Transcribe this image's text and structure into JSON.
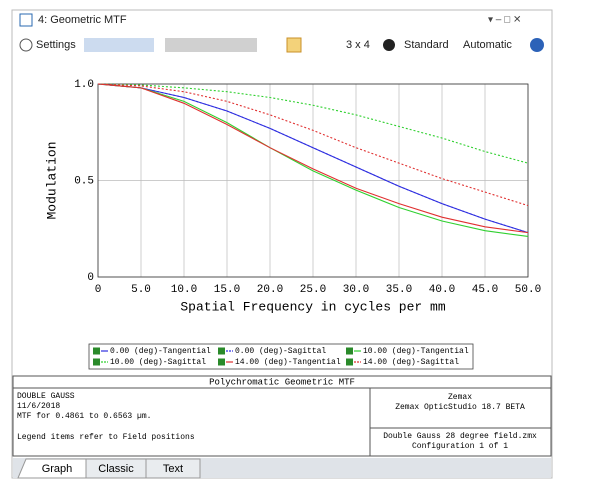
{
  "window": {
    "title": "4: Geometric MTF"
  },
  "toolbar": {
    "settings": "Settings",
    "layout": "3 x 4",
    "standard": "Standard",
    "automatic": "Automatic"
  },
  "chart_data": {
    "type": "line",
    "xlabel": "Spatial Frequency in cycles per mm",
    "ylabel": "Modulation",
    "x": [
      0,
      5,
      10,
      15,
      20,
      25,
      30,
      35,
      40,
      45,
      50
    ],
    "series": [
      {
        "name": "0.00 (deg)-Tangential",
        "color": "#3030e0",
        "style": "solid",
        "values": [
          1.0,
          0.98,
          0.93,
          0.86,
          0.77,
          0.67,
          0.57,
          0.47,
          0.38,
          0.3,
          0.23
        ]
      },
      {
        "name": "0.00 (deg)-Sagittal",
        "color": "#3030e0",
        "style": "dashed",
        "values": [
          1.0,
          0.98,
          0.93,
          0.86,
          0.77,
          0.67,
          0.57,
          0.47,
          0.38,
          0.3,
          0.23
        ]
      },
      {
        "name": "10.00 (deg)-Tangential",
        "color": "#30d030",
        "style": "solid",
        "values": [
          1.0,
          0.98,
          0.91,
          0.8,
          0.67,
          0.55,
          0.45,
          0.36,
          0.29,
          0.24,
          0.21
        ]
      },
      {
        "name": "10.00 (deg)-Sagittal",
        "color": "#30d030",
        "style": "dashed",
        "values": [
          1.0,
          0.995,
          0.98,
          0.96,
          0.93,
          0.89,
          0.84,
          0.78,
          0.72,
          0.65,
          0.59
        ]
      },
      {
        "name": "14.00 (deg)-Tangential",
        "color": "#e03030",
        "style": "solid",
        "values": [
          1.0,
          0.98,
          0.9,
          0.79,
          0.67,
          0.56,
          0.46,
          0.38,
          0.31,
          0.26,
          0.23
        ]
      },
      {
        "name": "14.00 (deg)-Sagittal",
        "color": "#e03030",
        "style": "dashed",
        "values": [
          1.0,
          0.99,
          0.96,
          0.91,
          0.84,
          0.76,
          0.67,
          0.59,
          0.51,
          0.44,
          0.37
        ]
      }
    ],
    "xlim": [
      0,
      50
    ],
    "xticks": [
      0,
      {
        "value": 5,
        "label": "5.0"
      },
      {
        "value": 10,
        "label": "10.0"
      },
      {
        "value": 15,
        "label": "15.0"
      },
      {
        "value": 20,
        "label": "20.0"
      },
      {
        "value": 25,
        "label": "25.0"
      },
      {
        "value": 30,
        "label": "30.0"
      },
      {
        "value": 35,
        "label": "35.0"
      },
      {
        "value": 40,
        "label": "40.0"
      },
      {
        "value": 45,
        "label": "45.0"
      },
      {
        "value": 50,
        "label": "50.0"
      }
    ],
    "ylim": [
      0,
      1
    ],
    "yticks": [
      0,
      0.5,
      {
        "value": 1,
        "label": "1.0"
      }
    ],
    "grid": true
  },
  "info": {
    "header": "Polychromatic Geometric MTF",
    "left": [
      "DOUBLE GAUSS",
      "11/6/2018",
      "MTF for 0.4861 to 0.6563 µm."
    ],
    "note": "Legend items refer to Field positions",
    "right_top": [
      "Zemax",
      "Zemax OpticStudio 18.7  BETA"
    ],
    "right_bottom": [
      "Double Gauss 28 degree field.zmx",
      "Configuration 1 of 1"
    ]
  },
  "tabs": [
    "Graph",
    "Classic",
    "Text"
  ]
}
